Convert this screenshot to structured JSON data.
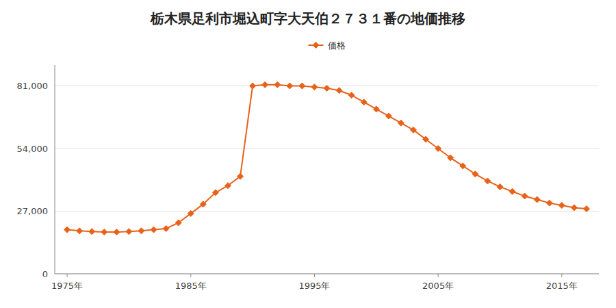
{
  "chart_data": {
    "type": "line",
    "title": "栃木県足利市堀込町字大天伯２７３１番の地価推移",
    "x": [
      1975,
      1976,
      1977,
      1978,
      1979,
      1980,
      1981,
      1982,
      1983,
      1984,
      1985,
      1986,
      1987,
      1988,
      1989,
      1990,
      1991,
      1992,
      1993,
      1994,
      1995,
      1996,
      1997,
      1998,
      1999,
      2000,
      2001,
      2002,
      2003,
      2004,
      2005,
      2006,
      2007,
      2008,
      2009,
      2010,
      2011,
      2012,
      2013,
      2014,
      2015,
      2016,
      2017
    ],
    "series": [
      {
        "name": "価格",
        "color": "#e8621a",
        "marker": "diamond",
        "values": [
          19000,
          18500,
          18200,
          18000,
          18000,
          18200,
          18500,
          19000,
          19500,
          22000,
          26000,
          30000,
          35000,
          38000,
          42000,
          81000,
          81500,
          81500,
          81000,
          81000,
          80500,
          80000,
          79000,
          77000,
          74000,
          71000,
          68000,
          65000,
          62000,
          58000,
          54000,
          50000,
          46500,
          43000,
          40000,
          37500,
          35500,
          33500,
          32000,
          30500,
          29500,
          28500,
          28000
        ]
      }
    ],
    "xlim": [
      1974,
      2018
    ],
    "xticks": [
      {
        "value": 1975,
        "label": "1975年"
      },
      {
        "value": 1985,
        "label": "1985年"
      },
      {
        "value": 1995,
        "label": "1995年"
      },
      {
        "value": 2005,
        "label": "2005年"
      },
      {
        "value": 2015,
        "label": "2015年"
      }
    ],
    "ylim": [
      0,
      90000
    ],
    "yticks": [
      0,
      {
        "value": 27000,
        "label": "27,000"
      },
      {
        "value": 54000,
        "label": "54,000"
      },
      {
        "value": 81000,
        "label": "81,000"
      }
    ],
    "grid": true,
    "legend": "top"
  }
}
